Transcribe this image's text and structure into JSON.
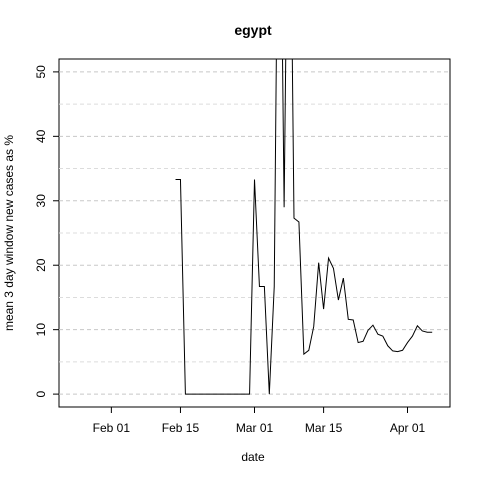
{
  "chart_data": {
    "type": "line",
    "title": "egypt",
    "xlabel": "date",
    "ylabel": "mean  3  day window new cases as %",
    "x_ticks": [
      "Feb 01",
      "Feb 15",
      "Mar 01",
      "Mar 15",
      "Apr 01"
    ],
    "y_ticks": [
      "0",
      "10",
      "20",
      "30",
      "40",
      "50"
    ],
    "y_tick_values": [
      0,
      10,
      20,
      30,
      40,
      50
    ],
    "ylim": [
      -2,
      52
    ],
    "xlim": [
      "2020-01-22",
      "2020-04-09"
    ],
    "grid": true,
    "series": [
      {
        "x": [
          "2020-02-14",
          "2020-02-15",
          "2020-02-16",
          "2020-02-17",
          "2020-02-18",
          "2020-02-19",
          "2020-02-20",
          "2020-02-21",
          "2020-02-22",
          "2020-02-23",
          "2020-02-24",
          "2020-02-25",
          "2020-02-26",
          "2020-02-27",
          "2020-02-28",
          "2020-02-29",
          "2020-03-01",
          "2020-03-02",
          "2020-03-03",
          "2020-03-04",
          "2020-03-05",
          "2020-03-06",
          "2020-03-07",
          "2020-03-08",
          "2020-03-09",
          "2020-03-10",
          "2020-03-11",
          "2020-03-12",
          "2020-03-13",
          "2020-03-14",
          "2020-03-15",
          "2020-03-16",
          "2020-03-17",
          "2020-03-18",
          "2020-03-19",
          "2020-03-20",
          "2020-03-21",
          "2020-03-22",
          "2020-03-23",
          "2020-03-24",
          "2020-03-25",
          "2020-03-26",
          "2020-03-27",
          "2020-03-28",
          "2020-03-29",
          "2020-03-30",
          "2020-03-31",
          "2020-04-01",
          "2020-04-02",
          "2020-04-03",
          "2020-04-04",
          "2020-04-05",
          "2020-04-06"
        ],
        "values": [
          33.3,
          33.3,
          0,
          0,
          0,
          0,
          0,
          0,
          0,
          0,
          0,
          0,
          0,
          0,
          0,
          0,
          33.3,
          16.7,
          16.7,
          0,
          16.7,
          100,
          29,
          100,
          27.3,
          26.7,
          6.2,
          6.8,
          10.5,
          20.4,
          13.2,
          21.1,
          19.5,
          14.6,
          18,
          11.6,
          11.5,
          8,
          8.2,
          9.9,
          10.7,
          9.3,
          9,
          7.5,
          6.7,
          6.6,
          6.8,
          8,
          9,
          10.6,
          9.8,
          9.6,
          9.6
        ]
      }
    ]
  }
}
